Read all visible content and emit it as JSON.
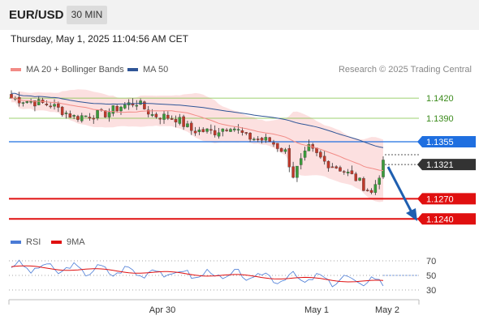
{
  "header": {
    "pair": "EUR/USD",
    "timeframe": "30 MIN"
  },
  "datetime": "Thursday, May 1, 2025 11:04:56 AM CET",
  "legend": {
    "items": [
      {
        "label": "MA 20 + Bollinger Bands",
        "color": "#f28b86"
      },
      {
        "label": "MA 50",
        "color": "#2f5597"
      }
    ],
    "research": "Research © 2025 Trading Central"
  },
  "rsi_legend": {
    "items": [
      {
        "label": "RSI",
        "color": "#4a7bd6"
      },
      {
        "label": "9MA",
        "color": "#e01010"
      }
    ]
  },
  "price_levels": [
    {
      "value": "1.1420",
      "kind": "resistance-green",
      "color": "#7dc242"
    },
    {
      "value": "1.1390",
      "kind": "resistance-green",
      "color": "#7dc242"
    },
    {
      "value": "1.1355",
      "kind": "pivot",
      "color": "#1f6fe0"
    },
    {
      "value": "1.1321",
      "kind": "current",
      "color": "#333333"
    },
    {
      "value": "1.1270",
      "kind": "support",
      "color": "#e01010"
    },
    {
      "value": "1.1240",
      "kind": "support",
      "color": "#e01010"
    }
  ],
  "rsi_levels": [
    "70",
    "50",
    "30"
  ],
  "x_labels": [
    "Apr 30",
    "May 1",
    "May 2"
  ],
  "colors": {
    "bull": "#3a9b3a",
    "bear": "#c0392b",
    "band_fill": "#fbdada",
    "ma20": "#f28b86",
    "ma50": "#2f5597",
    "arrow": "#1f5fb0"
  }
}
